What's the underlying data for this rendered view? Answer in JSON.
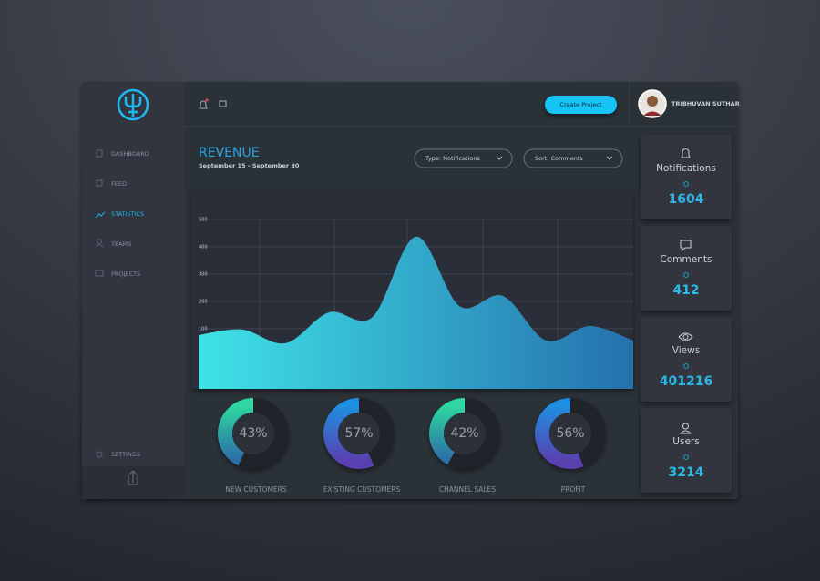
{
  "sidebar": {
    "items": [
      "DASHBOARD",
      "FEED",
      "STATISTICS",
      "TEAMS",
      "PROJECTS"
    ],
    "active": 2,
    "settings": "SETTINGS"
  },
  "topbar": {
    "button": "Create Project",
    "user": "TRIBHUVAN SUTHAR"
  },
  "revenue": {
    "title": "REVENUE",
    "subtitle": "September 15 - September 30",
    "filters": [
      "Type: Notifications",
      "Sort: Comments"
    ],
    "chart": {
      "type": "area",
      "categories": [
        null,
        null,
        null,
        null,
        null,
        null,
        null,
        null,
        null,
        null,
        null
      ],
      "values": [
        77,
        97,
        47,
        160,
        143,
        437,
        183,
        220,
        57,
        110,
        57
      ],
      "ylim": [
        -120,
        603
      ],
      "yticks": [
        100,
        200,
        300,
        400,
        500
      ],
      "grid": true
    }
  },
  "donuts": [
    {
      "label": "NEW CUSTOMERS",
      "value": 43,
      "value_label": "43%",
      "color": [
        "#2fd8a0",
        "#2b6fa8"
      ]
    },
    {
      "label": "EXISTING CUSTOMERS",
      "value": 57,
      "value_label": "57%",
      "color": [
        "#1e8fe0",
        "#5a3fb0"
      ]
    },
    {
      "label": "CHANNEL SALES",
      "value": 42,
      "value_label": "42%",
      "color": [
        "#2fd8a0",
        "#2b6fa8"
      ]
    },
    {
      "label": "PROFIT",
      "value": 56,
      "value_label": "56%",
      "color": [
        "#1e8fe0",
        "#5a3fb0"
      ]
    }
  ],
  "stats": [
    {
      "label": "Notifications",
      "value": 1604
    },
    {
      "label": "Comments",
      "value": 412
    },
    {
      "label": "Views",
      "value": 401216
    },
    {
      "label": "Users",
      "value": 3214
    }
  ]
}
